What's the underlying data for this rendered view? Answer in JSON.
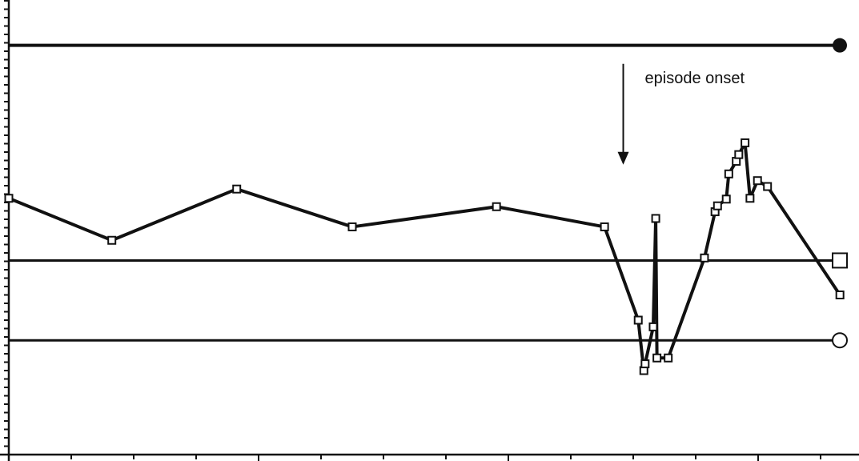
{
  "chart_data": {
    "type": "line",
    "title": "",
    "xlabel": "",
    "ylabel": "",
    "xlim": [
      0,
      13.6
    ],
    "ylim": [
      0,
      54
    ],
    "grid": false,
    "x_ticks": {
      "minor_step": 1,
      "major_every": 4
    },
    "y_ticks": {
      "minor_step": 1
    },
    "series": [
      {
        "x": [
          0,
          1.65,
          3.65,
          5.5,
          7.81,
          9.54,
          10.08,
          10.17,
          10.19,
          10.32,
          10.36,
          10.38,
          10.56,
          11.14,
          11.31,
          11.35,
          11.49,
          11.53,
          11.65,
          11.69,
          11.79,
          11.87,
          11.99,
          12.15,
          13.31
        ],
        "y": [
          30.5,
          25.5,
          31.6,
          27.1,
          29.5,
          27.1,
          16.0,
          10.0,
          10.8,
          15.2,
          28.1,
          11.5,
          11.5,
          23.4,
          28.9,
          29.6,
          30.4,
          33.4,
          34.9,
          35.7,
          37.1,
          30.5,
          32.6,
          31.9,
          19.0
        ],
        "marker": "small-square",
        "color": "#111111"
      }
    ],
    "reference_lines": [
      {
        "y": 48.7,
        "end_marker": "filled-circle",
        "stroke": "thick"
      },
      {
        "y": 23.1,
        "end_marker": "open-square",
        "stroke": "thin"
      },
      {
        "y": 13.6,
        "end_marker": "open-circle",
        "stroke": "thin"
      }
    ],
    "annotations": [
      {
        "text": "episode onset",
        "arrow_x": 9.84,
        "arrow_from_y": 46.5,
        "arrow_to_y": 34.5
      }
    ]
  }
}
